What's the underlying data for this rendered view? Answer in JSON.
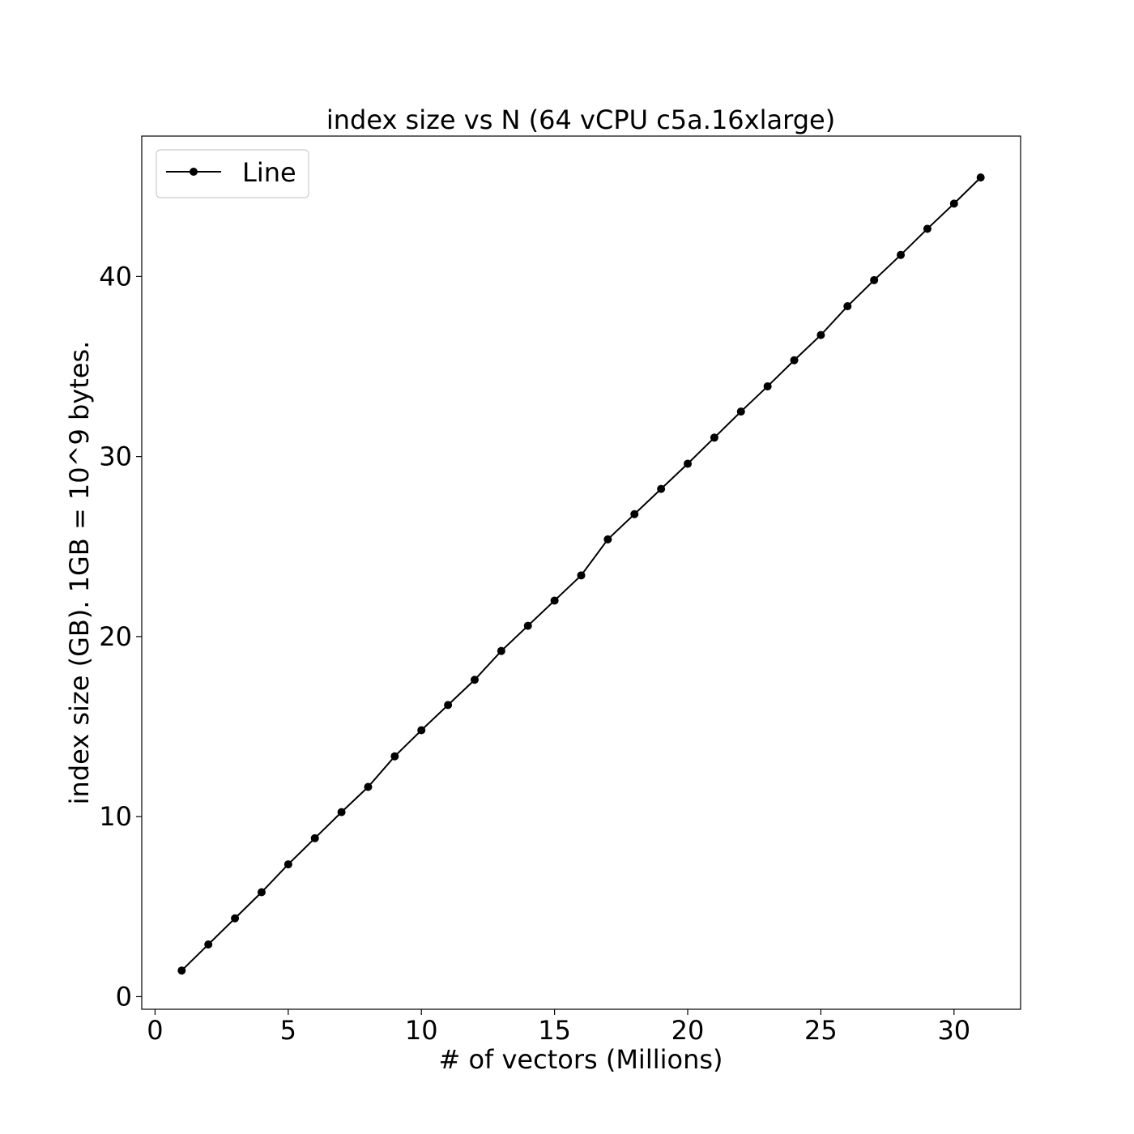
{
  "chart_data": {
    "type": "line",
    "title": "index size vs N (64 vCPU c5a.16xlarge)",
    "xlabel": "# of vectors (Millions)",
    "ylabel": "index size (GB). 1GB = 10^9 bytes.",
    "xlim": [
      -0.5,
      32.5
    ],
    "ylim": [
      -0.7,
      47.8
    ],
    "xticks": [
      0,
      5,
      10,
      15,
      20,
      25,
      30
    ],
    "yticks": [
      0,
      10,
      20,
      30,
      40
    ],
    "grid": false,
    "legend_position": "top-left",
    "series": [
      {
        "name": "Line",
        "color": "#000000",
        "marker": "circle",
        "x": [
          1,
          2,
          3,
          4,
          5,
          6,
          7,
          8,
          9,
          10,
          11,
          12,
          13,
          14,
          15,
          16,
          17,
          18,
          19,
          20,
          21,
          22,
          23,
          24,
          25,
          26,
          27,
          28,
          29,
          30,
          31
        ],
        "y": [
          1.45,
          2.9,
          4.35,
          5.8,
          7.35,
          8.8,
          10.25,
          11.65,
          13.35,
          14.8,
          16.2,
          17.6,
          19.2,
          20.6,
          22.0,
          23.4,
          25.4,
          26.8,
          28.2,
          29.6,
          31.05,
          32.5,
          33.9,
          35.35,
          36.75,
          38.35,
          39.8,
          41.2,
          42.65,
          44.05,
          45.5
        ]
      }
    ]
  }
}
